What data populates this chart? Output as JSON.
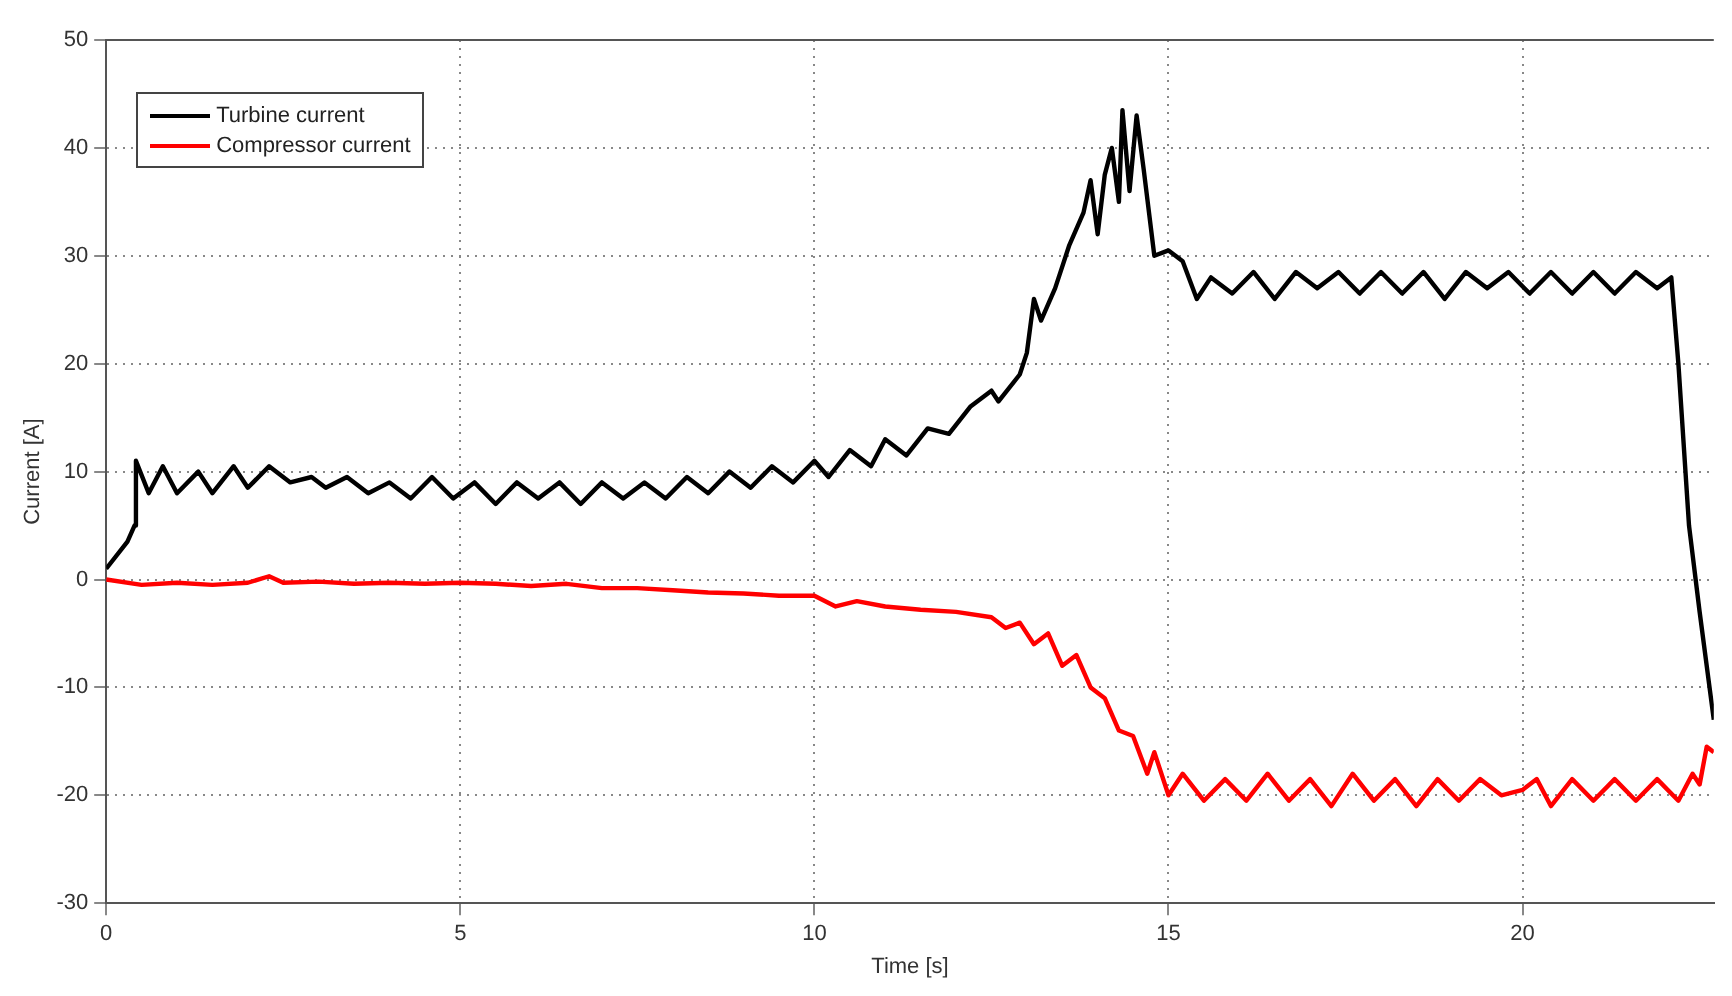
{
  "chart_data": {
    "type": "line",
    "xlabel": "Time [s]",
    "ylabel": "Current [A]",
    "xlim": [
      0,
      22.7
    ],
    "ylim": [
      -30,
      50
    ],
    "xticks": [
      0,
      5,
      10,
      15,
      20
    ],
    "yticks": [
      -30,
      -20,
      -10,
      0,
      10,
      20,
      30,
      40,
      50
    ],
    "grid": true,
    "legend": "top left",
    "line_style": "solid",
    "marker": "none",
    "series": [
      {
        "name": "Turbine current",
        "color": "#000000",
        "x": [
          0,
          0.3,
          0.4,
          0.42,
          0.6,
          0.8,
          1.0,
          1.3,
          1.5,
          1.8,
          2.0,
          2.3,
          2.6,
          2.9,
          3.1,
          3.4,
          3.7,
          4.0,
          4.3,
          4.6,
          4.9,
          5.2,
          5.5,
          5.8,
          6.1,
          6.4,
          6.7,
          7.0,
          7.3,
          7.6,
          7.9,
          8.2,
          8.5,
          8.8,
          9.1,
          9.4,
          9.7,
          10.0,
          10.2,
          10.5,
          10.8,
          11.0,
          11.3,
          11.6,
          11.9,
          12.2,
          12.5,
          12.6,
          12.9,
          13.0,
          13.1,
          13.2,
          13.4,
          13.5,
          13.6,
          13.8,
          13.9,
          14.0,
          14.1,
          14.2,
          14.3,
          14.35,
          14.45,
          14.55,
          14.65,
          14.8,
          15.0,
          15.2,
          15.4,
          15.6,
          15.9,
          16.2,
          16.5,
          16.8,
          17.1,
          17.4,
          17.7,
          18.0,
          18.3,
          18.6,
          18.9,
          19.2,
          19.5,
          19.8,
          20.1,
          20.4,
          20.7,
          21.0,
          21.3,
          21.6,
          21.9,
          22.1,
          22.2,
          22.35,
          22.5,
          22.7
        ],
        "values": [
          1,
          3.5,
          5,
          11,
          8,
          10.5,
          8,
          10,
          8,
          10.5,
          8.5,
          10.5,
          9,
          9.5,
          8.5,
          9.5,
          8,
          9,
          7.5,
          9.5,
          7.5,
          9,
          7,
          9,
          7.5,
          9,
          7,
          9,
          7.5,
          9,
          7.5,
          9.5,
          8,
          10,
          8.5,
          10.5,
          9,
          11,
          9.5,
          12,
          10.5,
          13,
          11.5,
          14,
          13.5,
          16,
          17.5,
          16.5,
          19,
          21,
          26,
          24,
          27,
          29,
          31,
          34,
          37,
          32,
          37.5,
          40,
          35,
          43.5,
          36,
          43,
          38,
          30,
          30.5,
          29.5,
          26,
          28,
          26.5,
          28.5,
          26,
          28.5,
          27,
          28.5,
          26.5,
          28.5,
          26.5,
          28.5,
          26,
          28.5,
          27,
          28.5,
          26.5,
          28.5,
          26.5,
          28.5,
          26.5,
          28.5,
          27,
          28,
          20,
          5,
          -3,
          -13
        ]
      },
      {
        "name": "Compressor current",
        "color": "#ff0000",
        "x": [
          0,
          0.5,
          1,
          1.5,
          2,
          2.3,
          2.5,
          3,
          3.5,
          4,
          4.5,
          5,
          5.5,
          6,
          6.5,
          7,
          7.5,
          8,
          8.5,
          9,
          9.5,
          10,
          10.3,
          10.6,
          11,
          11.5,
          12,
          12.5,
          12.7,
          12.9,
          13.1,
          13.3,
          13.5,
          13.7,
          13.9,
          14.1,
          14.3,
          14.5,
          14.7,
          14.8,
          15.0,
          15.2,
          15.5,
          15.8,
          16.1,
          16.4,
          16.7,
          17.0,
          17.3,
          17.6,
          17.9,
          18.2,
          18.5,
          18.8,
          19.1,
          19.4,
          19.7,
          20.0,
          20.2,
          20.4,
          20.7,
          21.0,
          21.3,
          21.6,
          21.9,
          22.2,
          22.4,
          22.5,
          22.6,
          22.7
        ],
        "values": [
          0,
          -0.5,
          -0.3,
          -0.5,
          -0.3,
          0.3,
          -0.3,
          -0.2,
          -0.4,
          -0.3,
          -0.4,
          -0.3,
          -0.4,
          -0.6,
          -0.4,
          -0.8,
          -0.8,
          -1,
          -1.2,
          -1.3,
          -1.5,
          -1.5,
          -2.5,
          -2,
          -2.5,
          -2.8,
          -3,
          -3.5,
          -4.5,
          -4,
          -6,
          -5,
          -8,
          -7,
          -10,
          -11,
          -14,
          -14.5,
          -18,
          -16,
          -20,
          -18,
          -20.5,
          -18.5,
          -20.5,
          -18,
          -20.5,
          -18.5,
          -21,
          -18,
          -20.5,
          -18.5,
          -21,
          -18.5,
          -20.5,
          -18.5,
          -20,
          -19.5,
          -18.5,
          -21,
          -18.5,
          -20.5,
          -18.5,
          -20.5,
          -18.5,
          -20.5,
          -18,
          -19,
          -15.5,
          -16
        ]
      }
    ]
  }
}
